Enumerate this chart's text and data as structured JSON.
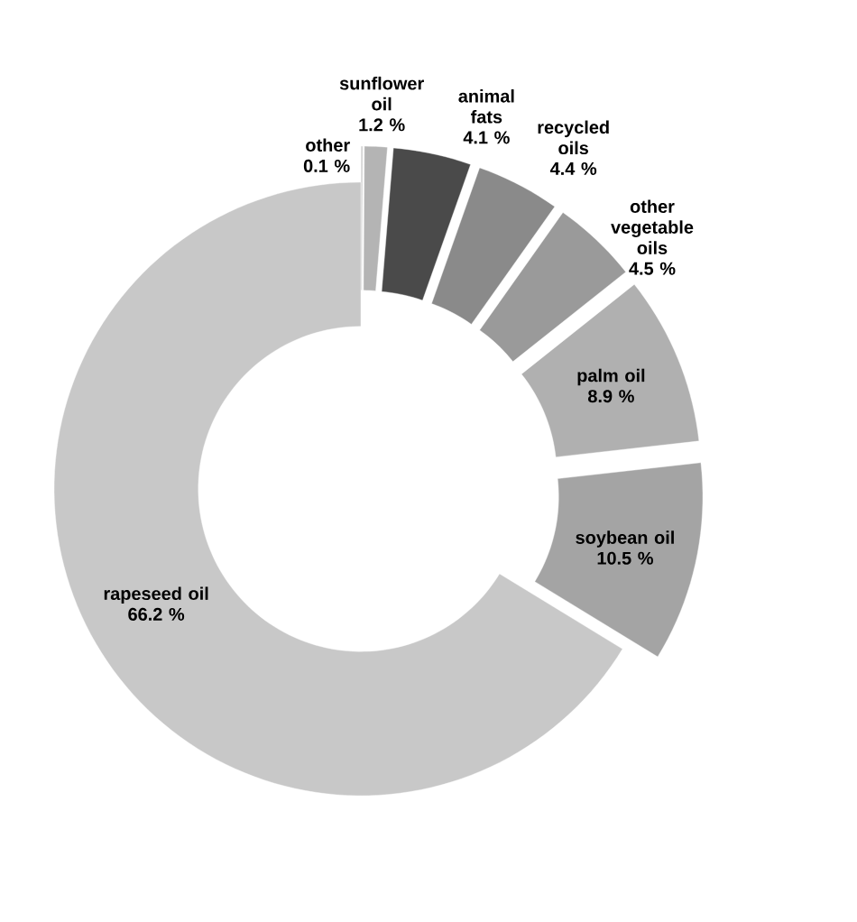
{
  "chart_data": {
    "type": "donut",
    "categories": [
      "other",
      "sunflower oil",
      "animal fats",
      "recycled oils",
      "other vegetable oils",
      "palm oil",
      "soybean oil",
      "rapeseed oil"
    ],
    "values": [
      0.1,
      1.2,
      4.1,
      4.4,
      4.5,
      8.9,
      10.5,
      66.2
    ],
    "value_labels": [
      "0.1 %",
      "1.2 %",
      "4.1 %",
      "4.4 %",
      "4.5 %",
      "8.9 %",
      "10.5 %",
      "66.2 %"
    ],
    "colors": [
      "#d0d0d0",
      "#b4b4b4",
      "#4a4a4a",
      "#8a8a8a",
      "#9a9a9a",
      "#b0b0b0",
      "#a4a4a4",
      "#c8c8c8"
    ],
    "legend": false
  }
}
